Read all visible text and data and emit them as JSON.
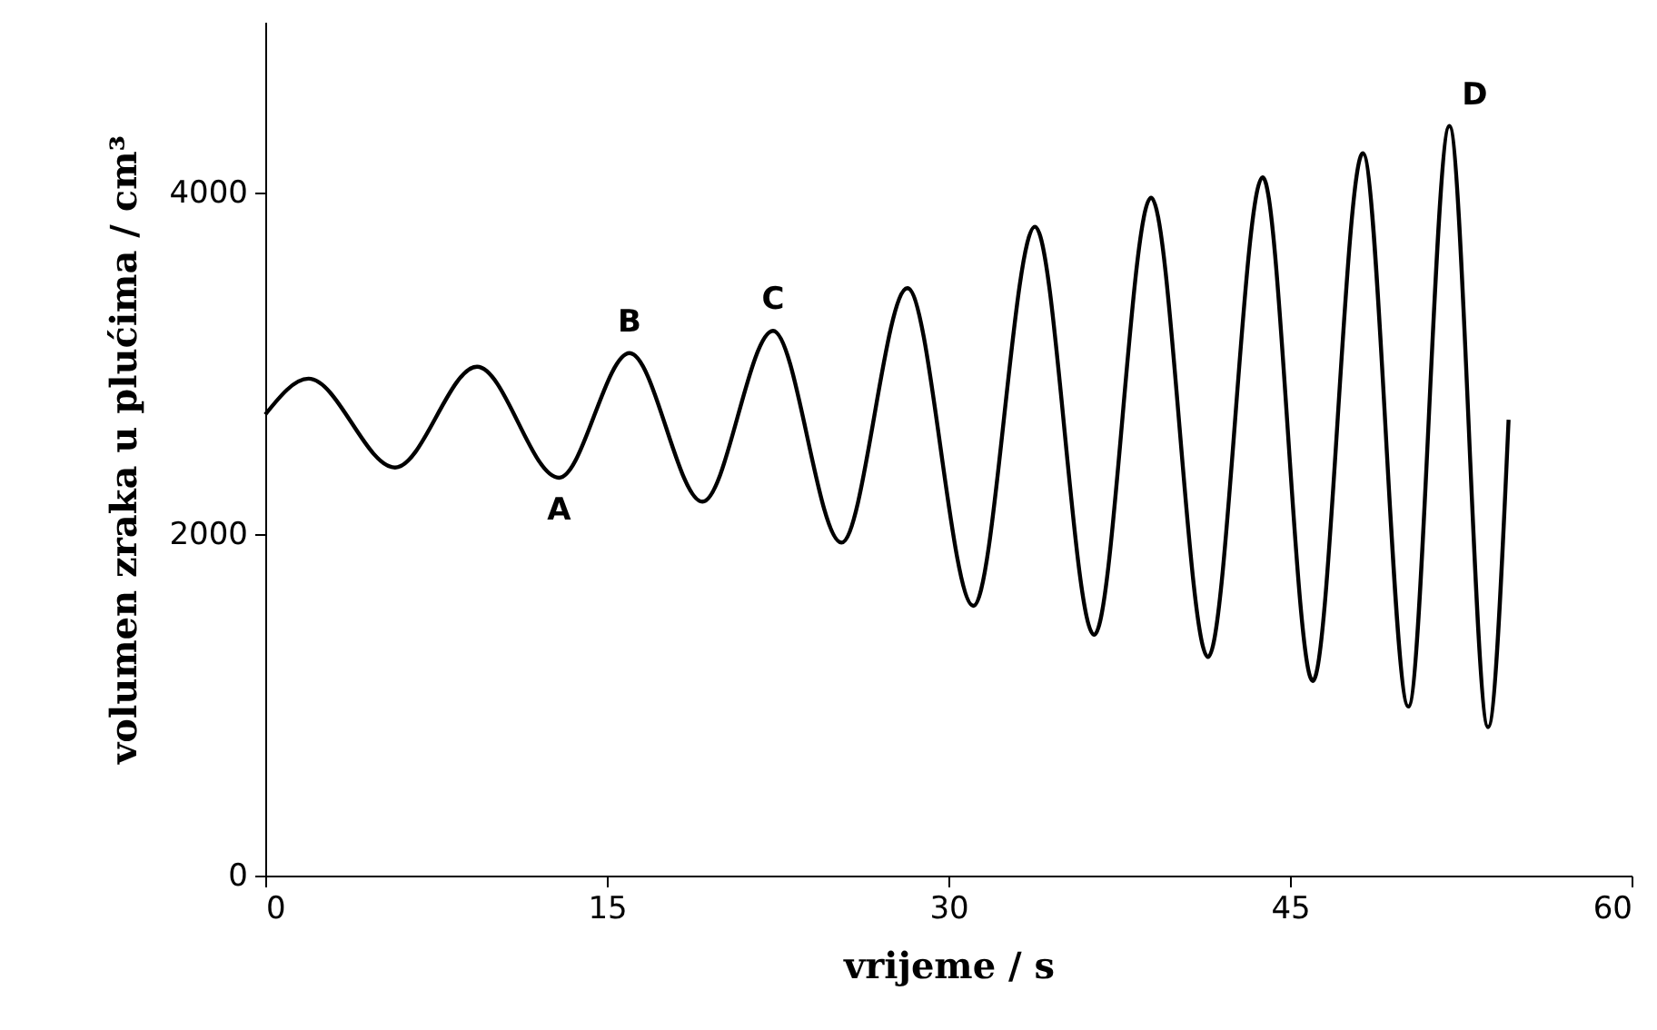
{
  "chart_data": {
    "type": "line",
    "xlabel": "vrijeme / s",
    "ylabel": "volumen zraka u plućima / cm³",
    "x": [
      0,
      1.9,
      5.7,
      9.3,
      12.9,
      16.0,
      19.2,
      22.3,
      25.3,
      28.2,
      31.1,
      33.8,
      36.4,
      38.9,
      41.4,
      43.8,
      46.0,
      48.2,
      50.2,
      52.0,
      53.7,
      54.6
    ],
    "series": [
      {
        "color": "#000000",
        "line_style": "solid",
        "marker": "none",
        "values": [
          2700,
          2910,
          2390,
          2980,
          2330,
          3060,
          2190,
          3190,
          1950,
          3440,
          1580,
          3800,
          1410,
          3970,
          1280,
          4090,
          1140,
          4230,
          990,
          4390,
          870,
          2670
        ]
      }
    ],
    "xlim": [
      0,
      60
    ],
    "xticks": [
      0,
      15,
      30,
      45,
      60
    ],
    "ylim": [
      0,
      5000
    ],
    "yticks": [
      0,
      2000,
      4000
    ],
    "grid": false,
    "annotations": [
      {
        "text": "A",
        "x": 12.9,
        "y": 2330
      },
      {
        "text": "B",
        "x": 16.0,
        "y": 3060
      },
      {
        "text": "C",
        "x": 22.3,
        "y": 3190
      },
      {
        "text": "D",
        "x": 52.0,
        "y": 4390
      }
    ]
  }
}
